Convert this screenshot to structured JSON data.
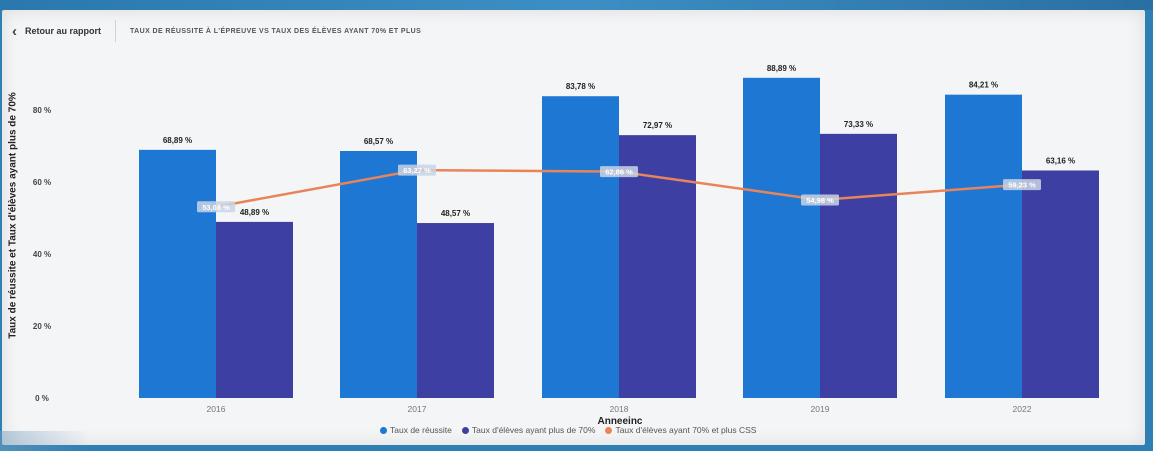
{
  "header": {
    "back_label": "Retour au rapport",
    "title": "TAUX DE RÉUSSITE À L'ÉPREUVE VS TAUX DES ÉLÈVES AYANT 70% ET PLUS"
  },
  "colors": {
    "series1": "#1f77d4",
    "series2": "#3e3fa3",
    "line": "#e8845a",
    "frame": "#f4f5f6"
  },
  "chart_data": {
    "type": "bar",
    "categories": [
      "2016",
      "2017",
      "2018",
      "2019",
      "2022"
    ],
    "xlabel": "Anneeinc",
    "ylabel": "Taux de réussite et Taux d'élèves ayant plus de 70%",
    "ylim": [
      0,
      93
    ],
    "yticks": [
      0,
      20,
      40,
      60,
      80
    ],
    "ytick_labels": [
      "0 %",
      "20 %",
      "40 %",
      "60 %",
      "80 %"
    ],
    "grid": false,
    "legend_position": "bottom",
    "series": [
      {
        "name": "Taux de réussite",
        "kind": "bar",
        "values": [
          68.89,
          68.57,
          83.78,
          88.89,
          84.21
        ],
        "labels": [
          "68,89 %",
          "68,57 %",
          "83,78 %",
          "88,89 %",
          "84,21 %"
        ]
      },
      {
        "name": "Taux d'élèves ayant plus de 70%",
        "kind": "bar",
        "values": [
          48.89,
          48.57,
          72.97,
          73.33,
          63.16
        ],
        "labels": [
          "48,89 %",
          "48,57 %",
          "72,97 %",
          "73,33 %",
          "63,16 %"
        ]
      },
      {
        "name": "Taux d'élèves ayant 70% et plus CSS",
        "kind": "line",
        "values": [
          53.08,
          63.27,
          62.86,
          54.98,
          59.23
        ],
        "labels": [
          "53,08 %",
          "63,27 %",
          "62,86 %",
          "54,98 %",
          "59,23 %"
        ]
      }
    ]
  }
}
